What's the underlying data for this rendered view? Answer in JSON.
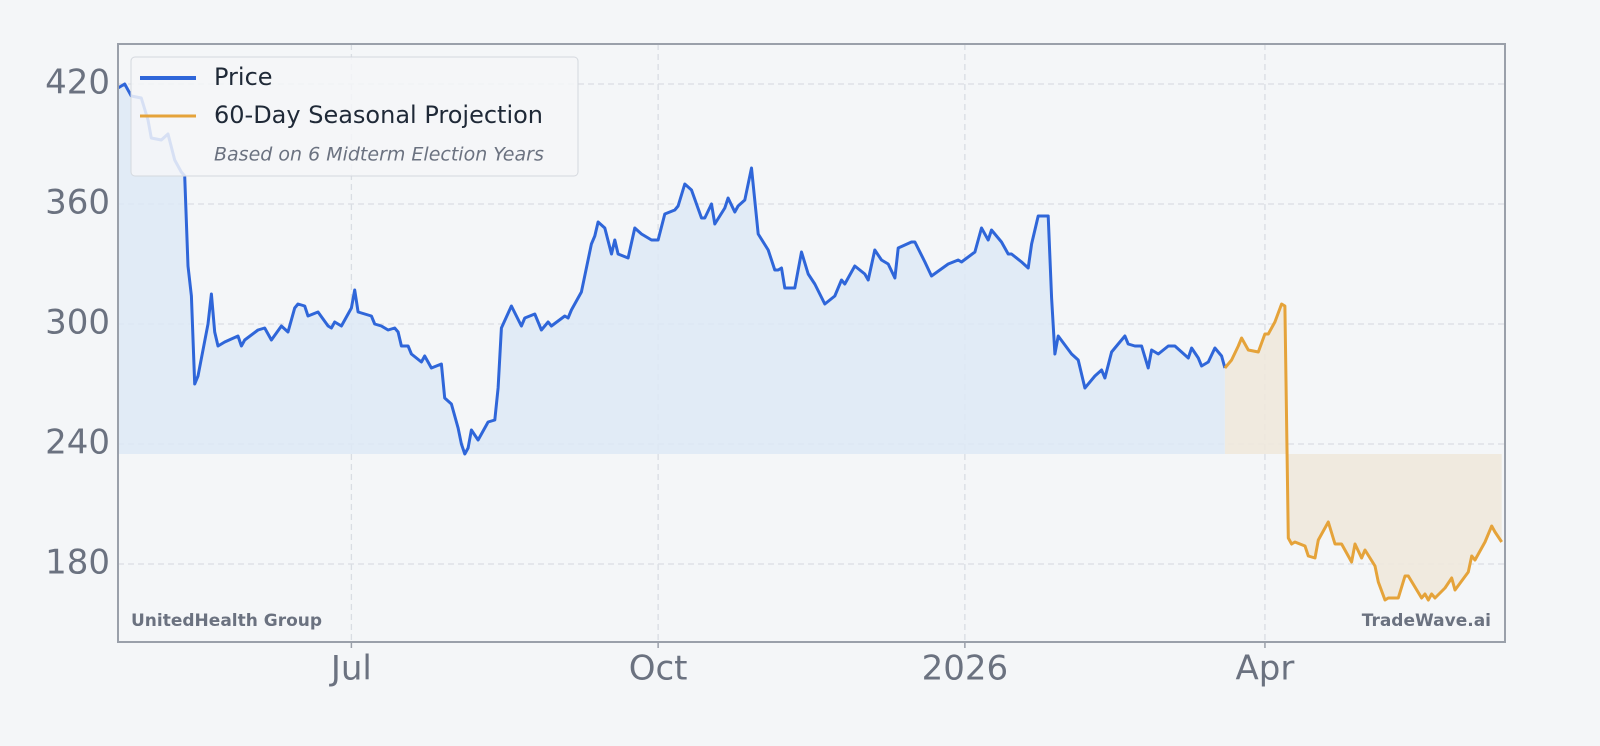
{
  "chart_data": {
    "type": "line",
    "legend_note": "Based on 6 Midterm Election Years",
    "company": "UnitedHealth Group",
    "watermark": "TradeWave.ai",
    "xlim": [
      111,
      527
    ],
    "ylim": [
      141,
      440
    ],
    "xticks": [
      {
        "value": 181,
        "label": "Jul"
      },
      {
        "value": 273,
        "label": "Oct"
      },
      {
        "value": 365,
        "label": "2026"
      },
      {
        "value": 455,
        "label": "Apr"
      }
    ],
    "yticks": [
      180,
      240,
      300,
      360,
      420
    ],
    "grid": true,
    "legend_position": "upper left",
    "series": [
      {
        "name": "Price",
        "color": "#2f66d9",
        "fill_color": "#dde9f6",
        "x": [
          111,
          113,
          115,
          118,
          120,
          121,
          124,
          126,
          128,
          130,
          131,
          132,
          133,
          134,
          135,
          138,
          139,
          140,
          141,
          143,
          147,
          148,
          149,
          153,
          155,
          157,
          160,
          162,
          164,
          165,
          167,
          168,
          171,
          174,
          175,
          176,
          178,
          181,
          182,
          183,
          187,
          188,
          190,
          192,
          194,
          195,
          196,
          198,
          199,
          202,
          203,
          205,
          208,
          209,
          211,
          213,
          214,
          215,
          216,
          217,
          219,
          222,
          224,
          225,
          226,
          229,
          232,
          233,
          236,
          238,
          240,
          241,
          245,
          246,
          247,
          250,
          253,
          254,
          255,
          257,
          259,
          260,
          261,
          264,
          266,
          268,
          271,
          273,
          275,
          278,
          279,
          281,
          283,
          286,
          287,
          289,
          290,
          293,
          294,
          296,
          297,
          299,
          301,
          303,
          306,
          308,
          309,
          310,
          311,
          314,
          316,
          318,
          320,
          323,
          326,
          328,
          329,
          332,
          335,
          336,
          338,
          340,
          342,
          344,
          345,
          349,
          350,
          353,
          355,
          360,
          363,
          364,
          368,
          370,
          372,
          373,
          376,
          378,
          379,
          382,
          384,
          385,
          387,
          390,
          391,
          392,
          393,
          397,
          399,
          401,
          404,
          406,
          407,
          409,
          411,
          413,
          414,
          416,
          418,
          420,
          421,
          423,
          426,
          428,
          432,
          433,
          435,
          436,
          438,
          440,
          442,
          443
        ],
        "values": [
          418,
          420,
          414,
          413,
          402,
          393,
          392,
          395,
          382,
          376,
          374,
          329,
          314,
          270,
          274,
          300,
          315,
          296,
          289,
          291,
          294,
          289,
          292,
          297,
          298,
          292,
          299,
          296,
          308,
          310,
          309,
          304,
          306,
          299,
          298,
          301,
          299,
          308,
          317,
          306,
          304,
          300,
          299,
          297,
          298,
          296,
          289,
          289,
          285,
          281,
          284,
          278,
          280,
          263,
          260,
          248,
          240,
          235,
          238,
          247,
          242,
          251,
          252,
          268,
          298,
          309,
          299,
          303,
          305,
          297,
          301,
          299,
          304,
          303,
          307,
          316,
          340,
          344,
          351,
          348,
          335,
          342,
          335,
          333,
          348,
          345,
          342,
          342,
          355,
          357,
          359,
          370,
          367,
          353,
          353,
          360,
          350,
          358,
          363,
          356,
          359,
          362,
          378,
          345,
          337,
          327,
          327,
          328,
          318,
          318,
          336,
          325,
          320,
          310,
          314,
          322,
          320,
          329,
          325,
          322,
          337,
          332,
          330,
          323,
          338,
          341,
          341,
          331,
          324,
          330,
          332,
          331,
          336,
          348,
          342,
          347,
          341,
          335,
          335,
          331,
          328,
          340,
          354,
          354,
          313,
          285,
          294,
          285,
          282,
          268,
          274,
          277,
          273,
          286,
          290,
          294,
          290,
          289,
          289,
          278,
          287,
          285,
          289,
          289,
          283,
          288,
          283,
          279,
          281,
          288,
          284,
          278
        ]
      },
      {
        "name": "60-Day Seasonal Projection",
        "color": "#e5a33a",
        "fill_color": "#efe7da",
        "x": [
          443,
          445,
          447,
          448,
          450,
          453,
          455,
          456,
          458,
          460,
          461,
          462,
          463,
          464,
          467,
          468,
          470,
          471,
          474,
          476,
          478,
          481,
          482,
          484,
          485,
          488,
          489,
          491,
          492,
          495,
          497,
          498,
          502,
          503,
          504,
          505,
          506,
          509,
          511,
          512,
          516,
          517,
          518,
          521,
          523,
          524,
          526
        ],
        "values": [
          278,
          282,
          289,
          293,
          287,
          286,
          295,
          295,
          301,
          310,
          309,
          193,
          190,
          191,
          189,
          184,
          183,
          192,
          201,
          190,
          190,
          181,
          190,
          183,
          187,
          179,
          171,
          162,
          163,
          163,
          174,
          174,
          163,
          165,
          162,
          165,
          163,
          168,
          173,
          167,
          176,
          184,
          182,
          191,
          199,
          196,
          191
        ]
      }
    ]
  }
}
